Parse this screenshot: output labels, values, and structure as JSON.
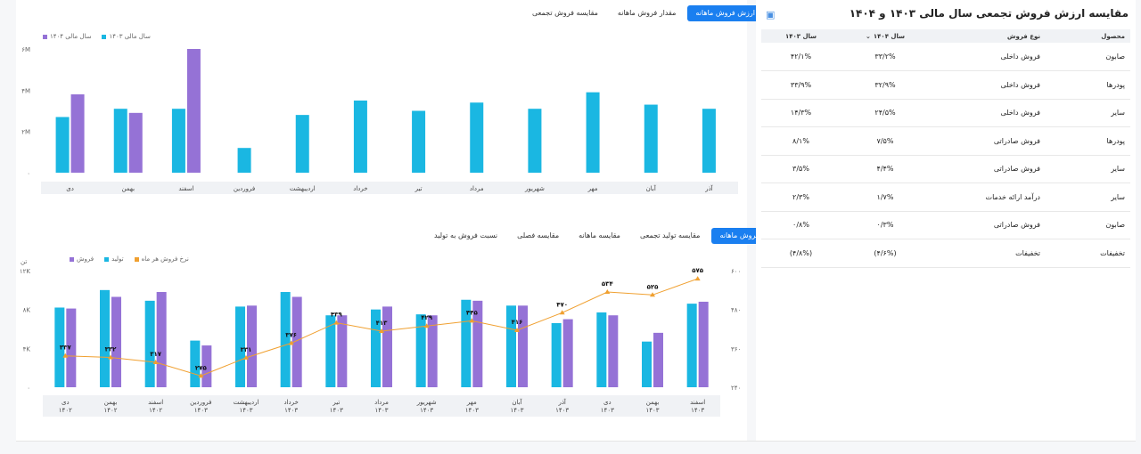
{
  "top_tabs": [
    "ارزش فروش ماهانه",
    "مقدار فروش ماهانه",
    "مقایسه فروش تجمعی"
  ],
  "top_active": 0,
  "bottom_tabs": [
    "فروش ماهانه",
    "مقایسه تولید تجمعی",
    "مقایسه ماهانه",
    "مقایسه فصلی",
    "نسبت فروش به تولید"
  ],
  "bottom_active": 0,
  "colors": {
    "accent": "#1a7ff0",
    "cyan": "#1ab7e2",
    "purple": "#9572d6",
    "orange": "#f0a030"
  },
  "chart_data": [
    {
      "type": "bar",
      "legend": [
        "سال مالی ۱۴۰۳",
        "سال مالی ۱۴۰۴"
      ],
      "categories": [
        "آذر",
        "آبان",
        "مهر",
        "شهریور",
        "مرداد",
        "تیر",
        "خرداد",
        "اردیبهشت",
        "فروردین",
        "اسفند",
        "بهمن",
        "دی"
      ],
      "series": [
        {
          "name": "سال مالی ۱۴۰۳",
          "values": [
            3.1,
            3.3,
            3.9,
            3.1,
            3.4,
            3.0,
            3.5,
            2.8,
            1.2,
            3.1,
            3.1,
            2.7
          ]
        },
        {
          "name": "سال مالی ۱۴۰۴",
          "values": [
            null,
            null,
            null,
            null,
            null,
            null,
            null,
            null,
            null,
            6.0,
            2.9,
            3.8
          ]
        }
      ],
      "yticks": [
        "۶M",
        "۴M",
        "۲M",
        "۰"
      ],
      "ylim": [
        0,
        6
      ]
    },
    {
      "type": "bar",
      "legend": [
        "نرخ فروش هر ماه",
        "تولید",
        "فروش"
      ],
      "left_unit": "تن",
      "categories": [
        [
          "اسفند",
          "۱۴۰۳"
        ],
        [
          "بهمن",
          "۱۴۰۳"
        ],
        [
          "دی",
          "۱۴۰۳"
        ],
        [
          "آذر",
          "۱۴۰۳"
        ],
        [
          "آبان",
          "۱۴۰۳"
        ],
        [
          "مهر",
          "۱۴۰۳"
        ],
        [
          "شهریور",
          "۱۴۰۳"
        ],
        [
          "مرداد",
          "۱۴۰۳"
        ],
        [
          "تیر",
          "۱۴۰۳"
        ],
        [
          "خرداد",
          "۱۴۰۳"
        ],
        [
          "اردیبهشت",
          "۱۴۰۳"
        ],
        [
          "فروردین",
          "۱۴۰۳"
        ],
        [
          "اسفند",
          "۱۴۰۲"
        ],
        [
          "بهمن",
          "۱۴۰۲"
        ],
        [
          "دی",
          "۱۴۰۲"
        ]
      ],
      "series": [
        {
          "name": "تولید",
          "values": [
            8.6,
            4.7,
            7.7,
            6.6,
            8.4,
            9.0,
            7.5,
            8.0,
            7.4,
            9.8,
            8.3,
            4.8,
            8.9,
            10.0,
            8.2
          ]
        },
        {
          "name": "فروش",
          "values": [
            8.8,
            5.6,
            7.4,
            7.0,
            8.4,
            8.9,
            7.4,
            8.3,
            7.4,
            9.3,
            8.4,
            4.3,
            9.8,
            9.3,
            8.1
          ]
        },
        {
          "name": "نرخ فروش هر ماه",
          "values": [
            575,
            525,
            534,
            470,
            416,
            445,
            429,
            413,
            439,
            376,
            331,
            275,
            317,
            332,
            337
          ]
        }
      ],
      "rate_labels": [
        "۵۷۵",
        "۵۲۵",
        "۵۳۴",
        "۴۷۰",
        "۴۱۶",
        "۴۴۵",
        "۴۲۹",
        "۴۱۳",
        "۴۳۹",
        "۳۷۶",
        "۳۳۱",
        "۲۷۵",
        "۳۱۷",
        "۳۳۲",
        "۳۳۷"
      ],
      "yticks_left": [
        "۱۲K",
        "۸K",
        "۴K",
        "۰"
      ],
      "ylim_left": [
        0,
        12
      ],
      "yticks_right": [
        "۶۰۰",
        "۴۸۰",
        "۳۶۰",
        "۲۴۰"
      ],
      "ylim_right": [
        240,
        600
      ]
    }
  ],
  "panel": {
    "title": "مقایسه ارزش فروش تجمعی سال مالی ۱۴۰۳ و ۱۴۰۴",
    "headers": {
      "product": "محصول",
      "type": "نوع فروش",
      "y1404": "سال ۱۴۰۴",
      "y1403": "سال ۱۴۰۳"
    },
    "rows": [
      {
        "product": "صابون",
        "type": "فروش داخلی",
        "y1404": "۳۳/۲%",
        "y1403": "۴۲/۱%"
      },
      {
        "product": "پودرها",
        "type": "فروش داخلی",
        "y1404": "۳۲/۹%",
        "y1403": "۳۳/۹%"
      },
      {
        "product": "سایر",
        "type": "فروش داخلی",
        "y1404": "۲۴/۵%",
        "y1403": "۱۴/۳%"
      },
      {
        "product": "پودرها",
        "type": "فروش صادراتی",
        "y1404": "۷/۵%",
        "y1403": "۸/۱%"
      },
      {
        "product": "سایر",
        "type": "فروش صادراتی",
        "y1404": "۴/۴%",
        "y1403": "۳/۵%"
      },
      {
        "product": "سایر",
        "type": "درآمد ارائه خدمات",
        "y1404": "۱/۷%",
        "y1403": "۲/۳%"
      },
      {
        "product": "صابون",
        "type": "فروش صادراتی",
        "y1404": "۰/۳%",
        "y1403": "۰/۸%"
      },
      {
        "product": "تخفیفات",
        "type": "تخفیفات",
        "y1404": "(۴/۶%)",
        "y1403": "(۴/۸%)"
      }
    ]
  }
}
